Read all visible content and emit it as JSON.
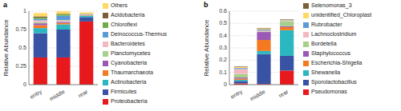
{
  "chart_data": [
    {
      "type": "bar",
      "stacked": true,
      "title": "a",
      "categories": [
        "entry",
        "middle",
        "rear"
      ],
      "series": [
        {
          "name": "Proteobacteria",
          "color": "#e8191c",
          "values": [
            0.37,
            0.37,
            0.86
          ]
        },
        {
          "name": "Firmicutes",
          "color": "#3953a4",
          "values": [
            0.33,
            0.38,
            0.06
          ]
        },
        {
          "name": "Actinobacteria",
          "color": "#2ab7c0",
          "values": [
            0.07,
            0.07,
            0.015
          ]
        },
        {
          "name": "Thaumarchaeota",
          "color": "#f47920",
          "values": [
            0.04,
            0.02,
            0.005
          ]
        },
        {
          "name": "Cyanobacteria",
          "color": "#9b59b6",
          "values": [
            0.025,
            0.015,
            0.003
          ]
        },
        {
          "name": "Planctomycetes",
          "color": "#a8d08d",
          "values": [
            0.015,
            0.008,
            0.003
          ]
        },
        {
          "name": "Bacteroidetes",
          "color": "#f4b8c1",
          "values": [
            0.025,
            0.015,
            0.007
          ]
        },
        {
          "name": "Deinococcus-Thermus",
          "color": "#5b9bd5",
          "values": [
            0.018,
            0.06,
            0.004
          ]
        },
        {
          "name": "Chloroflexi",
          "color": "#70ad47",
          "values": [
            0.018,
            0.018,
            0.003
          ]
        },
        {
          "name": "Acidobacteria",
          "color": "#7b5e3a",
          "values": [
            0.018,
            0.008,
            0.003
          ]
        },
        {
          "name": "Others",
          "color": "#ffd966",
          "values": [
            0.046,
            0.035,
            0.02
          ]
        }
      ],
      "ylabel": "Relative Abundance",
      "ylim": [
        0,
        1
      ],
      "yticks": [
        0,
        0.25,
        0.5,
        0.75,
        1
      ],
      "grid": true,
      "legend": "right"
    },
    {
      "type": "bar",
      "stacked": true,
      "title": "b",
      "categories": [
        "entry",
        "middle",
        "rear"
      ],
      "series": [
        {
          "name": "Pseudomonas",
          "color": "#e8191c",
          "values": [
            0.01,
            0.005,
            0.115
          ]
        },
        {
          "name": "Sporolactobacillus",
          "color": "#3953a4",
          "values": [
            0.02,
            0.245,
            0.12
          ]
        },
        {
          "name": "Shewanella",
          "color": "#2ab7c0",
          "values": [
            0.01,
            0.025,
            0.21
          ]
        },
        {
          "name": "Escherichia-Shigella",
          "color": "#f47920",
          "values": [
            0.01,
            0.09,
            0.025
          ]
        },
        {
          "name": "Staphylococcus",
          "color": "#9b59b6",
          "values": [
            0.008,
            0.065,
            0.008
          ]
        },
        {
          "name": "Bordetella",
          "color": "#a8d08d",
          "values": [
            0.03,
            0.005,
            0.04
          ]
        },
        {
          "name": "Lachnoclostridium",
          "color": "#f4b8c1",
          "values": [
            0.04,
            0.008,
            0.004
          ]
        },
        {
          "name": "Rubrobacter",
          "color": "#5b9bd5",
          "values": [
            0.008,
            0.008,
            0.004
          ]
        },
        {
          "name": "unidentified_Chloroplast",
          "color": "#ffd966",
          "values": [
            0.008,
            0.008,
            0.004
          ]
        },
        {
          "name": "Selenomonas_3",
          "color": "#7b5e3a",
          "values": [
            0.004,
            0.004,
            0.004
          ]
        }
      ],
      "ylabel": "Relative Abundance",
      "ylim": [
        0,
        0.6
      ],
      "yticks": [
        0,
        0.1,
        0.2,
        0.3,
        0.4,
        0.5,
        0.6
      ],
      "grid": true,
      "legend": "right"
    }
  ]
}
